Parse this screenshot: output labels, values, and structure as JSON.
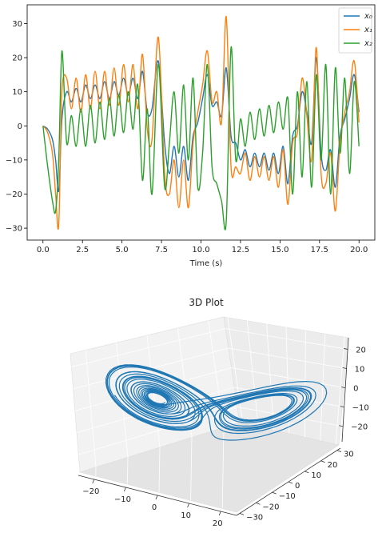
{
  "chart_data": [
    {
      "type": "line",
      "title": "",
      "xlabel": "Time (s)",
      "ylabel": "",
      "xlim": [
        -1.0,
        21.0
      ],
      "ylim": [
        -33.5,
        35.5
      ],
      "xticks": [
        "0.0",
        "2.5",
        "5.0",
        "7.5",
        "10.0",
        "12.5",
        "15.0",
        "17.5",
        "20.0"
      ],
      "yticks": [
        "−30",
        "−20",
        "−10",
        "0",
        "10",
        "20",
        "30"
      ],
      "legend_position": "top-right",
      "series": [
        {
          "name": "x₀",
          "color": "#1f77b4",
          "x": [
            0,
            0.3,
            0.6,
            0.8,
            1.0,
            1.2,
            1.5,
            1.8,
            2.1,
            2.4,
            2.7,
            3.0,
            3.3,
            3.6,
            3.9,
            4.2,
            4.5,
            4.8,
            5.1,
            5.4,
            5.7,
            6.0,
            6.3,
            6.6,
            6.9,
            7.3,
            7.7,
            8.0,
            8.3,
            8.6,
            8.9,
            9.2,
            9.5,
            9.8,
            10.1,
            10.4,
            10.7,
            11.0,
            11.3,
            11.6,
            11.9,
            12.2,
            12.5,
            12.8,
            13.1,
            13.4,
            13.7,
            14.0,
            14.3,
            14.6,
            14.9,
            15.2,
            15.5,
            15.8,
            16.1,
            16.4,
            16.7,
            17.0,
            17.3,
            17.6,
            17.9,
            18.2,
            18.5,
            18.8,
            19.1,
            19.4,
            19.7,
            20.0
          ],
          "y": [
            0,
            -1,
            -4,
            -10,
            -19,
            2,
            10,
            7,
            11,
            7,
            12,
            8,
            12,
            8,
            13,
            8,
            13,
            9,
            14,
            9,
            14,
            8,
            16,
            4,
            5,
            19,
            -5,
            -14,
            -6,
            -15,
            -6,
            -16,
            -3,
            1,
            8,
            15,
            6,
            7,
            3,
            17,
            -3,
            -5,
            -10,
            -7,
            -12,
            -8,
            -12,
            -8,
            -13,
            -8,
            -14,
            -6,
            -17,
            -3,
            0,
            10,
            4,
            -5,
            20,
            -8,
            -13,
            -7,
            -18,
            -3,
            2,
            8,
            15,
            4
          ]
        },
        {
          "name": "x₁",
          "color": "#ff7f0e",
          "x": [
            0,
            0.3,
            0.6,
            0.8,
            1.0,
            1.2,
            1.5,
            1.8,
            2.1,
            2.4,
            2.7,
            3.0,
            3.3,
            3.6,
            3.9,
            4.2,
            4.5,
            4.8,
            5.1,
            5.4,
            5.7,
            6.0,
            6.3,
            6.6,
            6.9,
            7.3,
            7.7,
            8.0,
            8.3,
            8.6,
            8.9,
            9.2,
            9.5,
            9.8,
            10.1,
            10.4,
            10.7,
            11.0,
            11.3,
            11.6,
            11.9,
            12.2,
            12.5,
            12.8,
            13.1,
            13.4,
            13.7,
            14.0,
            14.3,
            14.6,
            14.9,
            15.2,
            15.5,
            15.8,
            16.1,
            16.4,
            16.7,
            17.0,
            17.3,
            17.6,
            17.9,
            18.2,
            18.5,
            18.8,
            19.1,
            19.4,
            19.7,
            20.0
          ],
          "y": [
            0,
            -2,
            -8,
            -20,
            -29,
            10,
            14,
            5,
            14,
            4,
            15,
            5,
            16,
            5,
            16,
            6,
            17,
            6,
            18,
            7,
            18,
            5,
            21,
            -1,
            -4,
            26,
            -14,
            -20,
            -10,
            -24,
            -10,
            -24,
            -5,
            4,
            12,
            22,
            7,
            10,
            1,
            32,
            -12,
            -12,
            -14,
            -8,
            -16,
            -9,
            -15,
            -9,
            -16,
            -9,
            -18,
            -7,
            -23,
            -5,
            -2,
            14,
            3,
            -10,
            23,
            -14,
            -17,
            -8,
            -25,
            -5,
            4,
            10,
            19,
            1
          ]
        },
        {
          "name": "x₂",
          "color": "#2ca02c",
          "x": [
            0,
            0.3,
            0.6,
            0.8,
            1.0,
            1.2,
            1.5,
            1.8,
            2.1,
            2.4,
            2.7,
            3.0,
            3.3,
            3.6,
            3.9,
            4.2,
            4.5,
            4.8,
            5.1,
            5.4,
            5.7,
            6.0,
            6.3,
            6.6,
            6.9,
            7.3,
            7.7,
            8.0,
            8.3,
            8.6,
            8.9,
            9.2,
            9.5,
            9.8,
            10.1,
            10.4,
            10.7,
            11.0,
            11.3,
            11.6,
            11.9,
            12.2,
            12.5,
            12.8,
            13.1,
            13.4,
            13.7,
            14.0,
            14.3,
            14.6,
            14.9,
            15.2,
            15.5,
            15.8,
            16.1,
            16.4,
            16.7,
            17.0,
            17.3,
            17.6,
            17.9,
            18.2,
            18.5,
            18.8,
            19.1,
            19.4,
            19.7,
            20.0
          ],
          "y": [
            0,
            -12,
            -22,
            -25,
            -10,
            22,
            -5,
            3,
            -6,
            5,
            -6,
            6,
            -5,
            7,
            -4,
            8,
            -3,
            9,
            -2,
            10,
            -1,
            12,
            -16,
            5,
            -20,
            18,
            -18,
            -5,
            10,
            -8,
            12,
            -10,
            14,
            -18,
            -8,
            18,
            -12,
            -17,
            -22,
            -28,
            23,
            -10,
            2,
            -6,
            4,
            -4,
            5,
            -3,
            6,
            -2,
            7,
            -1,
            8,
            -20,
            10,
            -15,
            13,
            -18,
            15,
            -10,
            18,
            -20,
            17,
            -8,
            14,
            -14,
            13,
            -6
          ]
        }
      ]
    },
    {
      "type": "line3d",
      "title": "3D Plot",
      "xlabel": "",
      "ylabel": "",
      "zlabel": "",
      "xticks": [
        "−20",
        "−10",
        "0",
        "10",
        "20"
      ],
      "yticks": [
        "−30",
        "−20",
        "−10",
        "0",
        "10",
        "20",
        "30"
      ],
      "zticks": [
        "−20",
        "−10",
        "0",
        "10",
        "20"
      ],
      "xlim": [
        -25,
        25
      ],
      "ylim": [
        -32,
        32
      ],
      "zlim": [
        -28,
        26
      ],
      "grid": true,
      "series": [
        {
          "name": "",
          "color": "#1f77b4",
          "description": "Lorenz attractor trajectory"
        }
      ]
    }
  ]
}
